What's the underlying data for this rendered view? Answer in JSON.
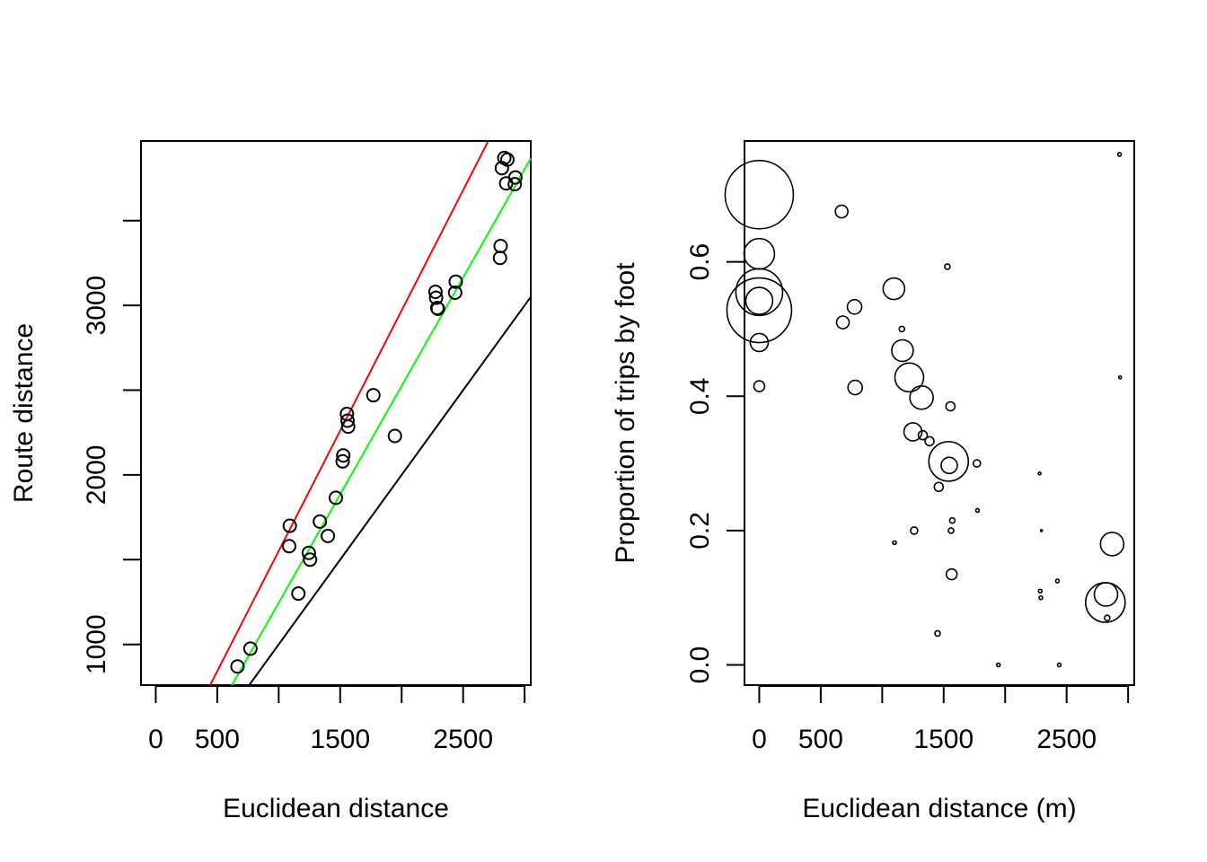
{
  "chart_data": [
    {
      "type": "scatter",
      "title": "",
      "xlabel": "Euclidean distance",
      "ylabel": "Route distance",
      "xlim": [
        -120,
        3050
      ],
      "ylim": [
        760,
        3970
      ],
      "x_ticks": [
        0,
        500,
        1000,
        1500,
        2000,
        2500,
        3000
      ],
      "x_tick_labels": [
        "0",
        "500",
        "",
        "1500",
        "",
        "2500",
        ""
      ],
      "y_ticks": [
        1000,
        1500,
        2000,
        2500,
        3000,
        3500
      ],
      "y_tick_labels": [
        "1000",
        "",
        "2000",
        "",
        "3000",
        ""
      ],
      "points": {
        "x": [
          665,
          770,
          1085,
          1090,
          1160,
          1245,
          1255,
          1335,
          1400,
          1465,
          1520,
          1525,
          1555,
          1560,
          1565,
          1770,
          1945,
          2275,
          2280,
          2290,
          2295,
          2435,
          2440,
          2800,
          2805,
          2815,
          2835,
          2850,
          2860,
          2920,
          2925
        ],
        "y": [
          870,
          975,
          1580,
          1700,
          1300,
          1540,
          1500,
          1725,
          1640,
          1865,
          2080,
          2115,
          2360,
          2320,
          2285,
          2470,
          2230,
          3080,
          3045,
          2985,
          2980,
          3075,
          3140,
          3280,
          3350,
          3810,
          3870,
          3720,
          3860,
          3715,
          3755
        ]
      },
      "lines": [
        {
          "name": "red",
          "color": "#ff0000",
          "slope": 1.419,
          "intercept": 132
        },
        {
          "name": "green",
          "color": "#00ff00",
          "slope": 1.279,
          "intercept": -34
        },
        {
          "name": "black",
          "color": "#000000",
          "slope": 1.0,
          "intercept": 0
        }
      ]
    },
    {
      "type": "scatter",
      "title": "",
      "xlabel": "Euclidean distance (m)",
      "ylabel": "Proportion of trips by foot",
      "xlim": [
        -120,
        3050
      ],
      "ylim": [
        -0.03,
        0.78
      ],
      "x_ticks": [
        0,
        500,
        1000,
        1500,
        2000,
        2500,
        3000
      ],
      "x_tick_labels": [
        "0",
        "500",
        "",
        "1500",
        "",
        "2500",
        ""
      ],
      "y_ticks": [
        0.0,
        0.2,
        0.4,
        0.6
      ],
      "y_tick_labels": [
        "0.0",
        "0.2",
        "0.4",
        "0.6"
      ],
      "bubble_size_unit": "relative radius",
      "points": {
        "x": [
          0,
          0,
          0,
          0,
          0,
          0,
          0,
          670,
          680,
          775,
          780,
          1095,
          1160,
          1165,
          1220,
          1250,
          1260,
          1320,
          1330,
          1385,
          1460,
          1530,
          1540,
          1545,
          1555,
          1560,
          1565,
          1570,
          1770,
          1775,
          1945,
          2280,
          2285,
          2290,
          2295,
          2425,
          2440,
          2815,
          2820,
          2830,
          2870,
          2930,
          2935,
          1100,
          1450
        ],
        "y": [
          0.7,
          0.612,
          0.555,
          0.528,
          0.542,
          0.48,
          0.415,
          0.675,
          0.51,
          0.533,
          0.413,
          0.56,
          0.5,
          0.468,
          0.428,
          0.347,
          0.2,
          0.398,
          0.342,
          0.333,
          0.265,
          0.593,
          0.303,
          0.297,
          0.385,
          0.2,
          0.135,
          0.215,
          0.3,
          0.23,
          0.0,
          0.285,
          0.11,
          0.1,
          0.2,
          0.125,
          0.0,
          0.093,
          0.105,
          0.07,
          0.18,
          0.76,
          0.428,
          0.182,
          0.047
        ],
        "size": [
          38,
          17,
          26,
          36,
          15,
          10,
          6,
          7,
          7,
          8,
          8,
          12,
          3,
          12,
          16,
          10,
          4,
          13,
          5,
          5,
          5,
          3,
          22,
          9,
          5,
          3,
          6,
          3,
          4,
          2,
          2,
          1.5,
          2,
          2,
          1,
          2,
          2,
          22,
          13,
          3,
          13,
          2,
          1.5,
          2,
          3
        ]
      }
    }
  ]
}
